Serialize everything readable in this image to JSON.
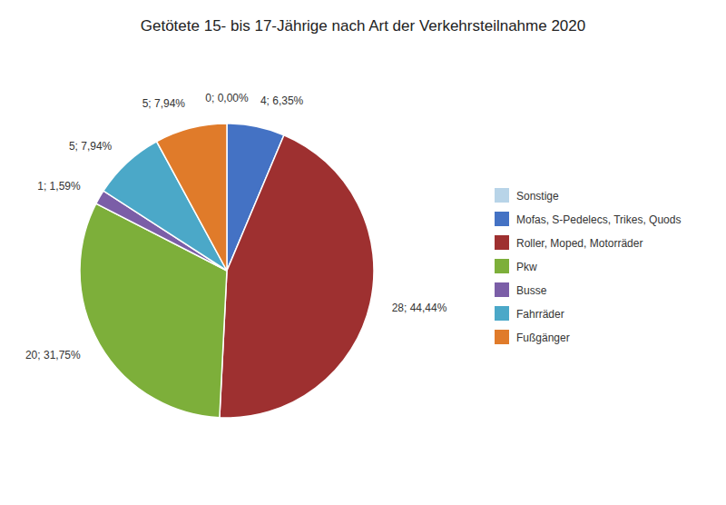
{
  "chart_data": {
    "type": "pie",
    "title": "Getötete 15- bis 17-Jährige nach Art der Verkehrsteilnahme 2020",
    "categories": [
      "Sonstige",
      "Mofas, S-Pedelecs, Trikes, Quods",
      "Roller, Moped, Motorräder",
      "Pkw",
      "Busse",
      "Fahrräder",
      "Fußgänger"
    ],
    "values": [
      0,
      4,
      28,
      20,
      1,
      5,
      5
    ],
    "value_labels": [
      "0; 0,00%",
      "4; 6,35%",
      "28; 44,44%",
      "20; 31,75%",
      "1; 1,59%",
      "5; 7,94%",
      "5; 7,94%"
    ],
    "colors": [
      "#B8D4E8",
      "#4472C4",
      "#9E3030",
      "#7DAF3A",
      "#7B5EA7",
      "#4BA8C8",
      "#E07B2A"
    ],
    "data_labels": true,
    "legend": "right"
  }
}
